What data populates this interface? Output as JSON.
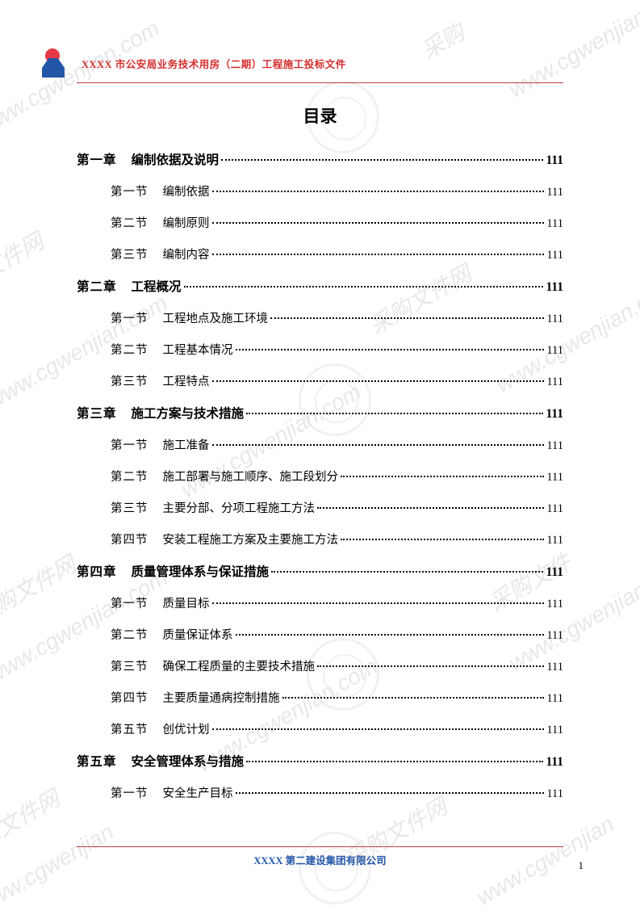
{
  "header": {
    "title": "XXXX 市公安局业务技术用房（二期）工程施工投标文件"
  },
  "toc": {
    "title": "目录",
    "entries": [
      {
        "type": "chapter",
        "label": "第一章",
        "text": "编制依据及说明",
        "page": "111"
      },
      {
        "type": "section",
        "label": "第一节",
        "text": "编制依据",
        "page": "111"
      },
      {
        "type": "section",
        "label": "第二节",
        "text": "编制原则",
        "page": "111"
      },
      {
        "type": "section",
        "label": "第三节",
        "text": "编制内容",
        "page": "111"
      },
      {
        "type": "chapter",
        "label": "第二章",
        "text": "工程概况",
        "page": "111"
      },
      {
        "type": "section",
        "label": "第一节",
        "text": "工程地点及施工环境",
        "page": "111"
      },
      {
        "type": "section",
        "label": "第二节",
        "text": "工程基本情况",
        "page": "111"
      },
      {
        "type": "section",
        "label": "第三节",
        "text": "工程特点",
        "page": "111"
      },
      {
        "type": "chapter",
        "label": "第三章",
        "text": "施工方案与技术措施",
        "page": "111"
      },
      {
        "type": "section",
        "label": "第一节",
        "text": "施工准备",
        "page": "111"
      },
      {
        "type": "section",
        "label": "第二节",
        "text": "施工部署与施工顺序、施工段划分",
        "page": "111"
      },
      {
        "type": "section",
        "label": "第三节",
        "text": "主要分部、分项工程施工方法",
        "page": "111"
      },
      {
        "type": "section",
        "label": "第四节",
        "text": "安装工程施工方案及主要施工方法",
        "page": "111"
      },
      {
        "type": "chapter",
        "label": "第四章",
        "text": "质量管理体系与保证措施",
        "page": "111"
      },
      {
        "type": "section",
        "label": "第一节",
        "text": "质量目标",
        "page": "111"
      },
      {
        "type": "section",
        "label": "第二节",
        "text": "质量保证体系",
        "page": "111"
      },
      {
        "type": "section",
        "label": "第三节",
        "text": "确保工程质量的主要技术措施",
        "page": "111"
      },
      {
        "type": "section",
        "label": "第四节",
        "text": "主要质量通病控制措施",
        "page": "111"
      },
      {
        "type": "section",
        "label": "第五节",
        "text": "创优计划",
        "page": "111"
      },
      {
        "type": "chapter",
        "label": "第五章",
        "text": "安全管理体系与措施",
        "page": "111"
      },
      {
        "type": "section",
        "label": "第一节",
        "text": "安全生产目标",
        "page": "111"
      }
    ]
  },
  "footer": {
    "text": "XXXX 第二建设集团有限公司"
  },
  "pageNumber": "1",
  "watermark": {
    "text": "www.cgwenjian.com",
    "url_fragment": "采购文件网",
    "color": "#e8e8e8"
  },
  "colors": {
    "header_border": "#c04040",
    "header_text": "#d32f2f",
    "footer_text": "#2456a8",
    "logo_red": "#e63946",
    "logo_blue": "#2456a8",
    "body_text": "#000000",
    "background": "#ffffff"
  }
}
